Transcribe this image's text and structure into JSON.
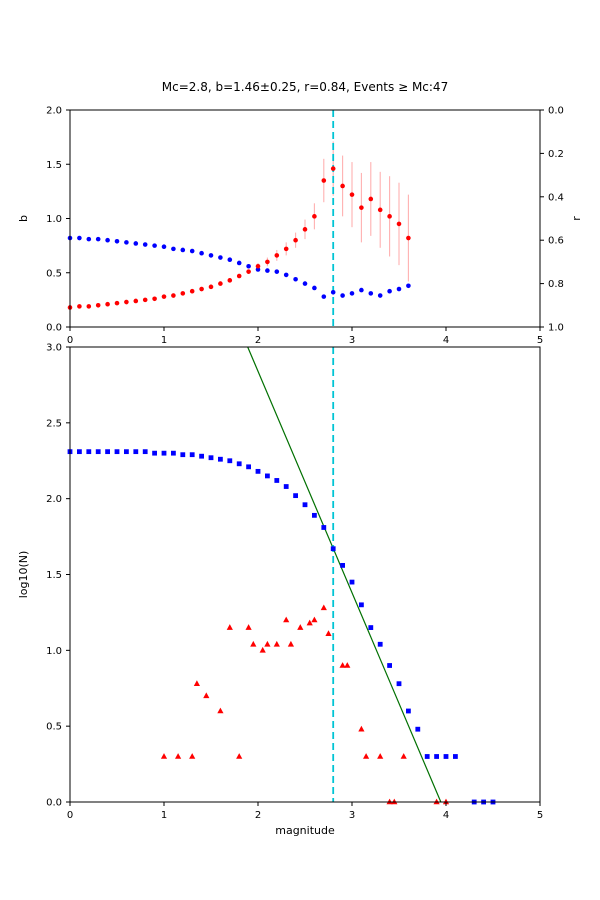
{
  "figure": {
    "title": "Mc=2.8, b=1.46±0.25, r=0.84, Events ≥ Mc:47",
    "background": "#ffffff"
  },
  "colors": {
    "blue": "#0000ff",
    "red": "#ff0000",
    "pink": "#ffb0b0",
    "green": "#007000",
    "cyan": "#00c4d4",
    "axis": "#000000"
  },
  "chart_data": [
    {
      "type": "scatter",
      "name": "b-and-r-vs-cutoff-magnitude",
      "xlim": [
        0,
        5
      ],
      "xticks": [
        "0",
        "1",
        "2",
        "3",
        "4",
        "5"
      ],
      "left_axis": {
        "label": "b",
        "lim": [
          0,
          2
        ],
        "ticks": [
          "0.0",
          "0.5",
          "1.0",
          "1.5",
          "2.0"
        ]
      },
      "right_axis": {
        "label": "r",
        "lim": [
          0,
          1
        ],
        "ticks": [
          "0.0",
          "0.2",
          "0.4",
          "0.6",
          "0.8",
          "1.0"
        ]
      },
      "vline": {
        "x": 2.8,
        "style": "dashed",
        "color_key": "cyan"
      },
      "series": [
        {
          "name": "b-value",
          "axis": "left",
          "marker": "circle",
          "color_key": "red",
          "err_color_key": "pink",
          "x": [
            0,
            0.1,
            0.2,
            0.3,
            0.4,
            0.5,
            0.6,
            0.7,
            0.8,
            0.9,
            1,
            1.1,
            1.2,
            1.3,
            1.4,
            1.5,
            1.6,
            1.7,
            1.8,
            1.9,
            2,
            2.1,
            2.2,
            2.3,
            2.4,
            2.5,
            2.6,
            2.7,
            2.8,
            2.9,
            3,
            3.1,
            3.2,
            3.3,
            3.4,
            3.5,
            3.6
          ],
          "y": [
            0.18,
            0.19,
            0.19,
            0.2,
            0.21,
            0.22,
            0.23,
            0.24,
            0.25,
            0.26,
            0.28,
            0.29,
            0.31,
            0.33,
            0.35,
            0.37,
            0.4,
            0.43,
            0.47,
            0.51,
            0.56,
            0.6,
            0.66,
            0.72,
            0.8,
            0.9,
            1.02,
            1.35,
            1.46,
            1.3,
            1.22,
            1.1,
            1.18,
            1.08,
            1.02,
            0.95,
            0.82
          ],
          "yerr": [
            0.02,
            0.02,
            0.02,
            0.02,
            0.02,
            0.02,
            0.02,
            0.02,
            0.02,
            0.02,
            0.02,
            0.02,
            0.02,
            0.02,
            0.02,
            0.02,
            0.02,
            0.02,
            0.02,
            0.02,
            0.03,
            0.04,
            0.05,
            0.06,
            0.07,
            0.09,
            0.12,
            0.2,
            0.25,
            0.28,
            0.3,
            0.32,
            0.34,
            0.35,
            0.37,
            0.38,
            0.4
          ]
        },
        {
          "name": "r-value",
          "axis": "right",
          "marker": "circle",
          "color_key": "blue",
          "x": [
            0,
            0.1,
            0.2,
            0.3,
            0.4,
            0.5,
            0.6,
            0.7,
            0.8,
            0.9,
            1,
            1.1,
            1.2,
            1.3,
            1.4,
            1.5,
            1.6,
            1.7,
            1.8,
            1.9,
            2,
            2.1,
            2.2,
            2.3,
            2.4,
            2.5,
            2.6,
            2.7,
            2.8,
            2.9,
            3,
            3.1,
            3.2,
            3.3,
            3.4,
            3.5,
            3.6
          ],
          "y": [
            0.59,
            0.59,
            0.595,
            0.595,
            0.6,
            0.605,
            0.61,
            0.615,
            0.62,
            0.625,
            0.63,
            0.64,
            0.645,
            0.65,
            0.66,
            0.67,
            0.68,
            0.69,
            0.705,
            0.72,
            0.735,
            0.74,
            0.745,
            0.76,
            0.78,
            0.8,
            0.82,
            0.86,
            0.84,
            0.855,
            0.845,
            0.83,
            0.845,
            0.855,
            0.835,
            0.825,
            0.81
          ]
        }
      ]
    },
    {
      "type": "scatter",
      "name": "frequency-magnitude-distribution",
      "xlabel": "magnitude",
      "ylabel": "log10(N)",
      "xlim": [
        0,
        5
      ],
      "ylim": [
        0,
        3
      ],
      "xticks": [
        "0",
        "1",
        "2",
        "3",
        "4",
        "5"
      ],
      "yticks": [
        "0.0",
        "0.5",
        "1.0",
        "1.5",
        "2.0",
        "2.5",
        "3.0"
      ],
      "vline": {
        "x": 2.8,
        "style": "dashed",
        "color_key": "cyan"
      },
      "fit_line": {
        "slope": -1.46,
        "intercept": 5.76,
        "color_key": "green"
      },
      "series": [
        {
          "name": "cumulative-count",
          "marker": "square",
          "color_key": "blue",
          "x": [
            0,
            0.1,
            0.2,
            0.3,
            0.4,
            0.5,
            0.6,
            0.7,
            0.8,
            0.9,
            1,
            1.1,
            1.2,
            1.3,
            1.4,
            1.5,
            1.6,
            1.7,
            1.8,
            1.9,
            2,
            2.1,
            2.2,
            2.3,
            2.4,
            2.5,
            2.6,
            2.7,
            2.8,
            2.9,
            3,
            3.1,
            3.2,
            3.3,
            3.4,
            3.5,
            3.6,
            3.7,
            3.8,
            3.9,
            4,
            4.1,
            4.3,
            4.4,
            4.5
          ],
          "y": [
            2.31,
            2.31,
            2.31,
            2.31,
            2.31,
            2.31,
            2.31,
            2.31,
            2.31,
            2.3,
            2.3,
            2.3,
            2.29,
            2.29,
            2.28,
            2.27,
            2.26,
            2.25,
            2.23,
            2.21,
            2.18,
            2.15,
            2.12,
            2.08,
            2.02,
            1.96,
            1.89,
            1.81,
            1.67,
            1.56,
            1.45,
            1.3,
            1.15,
            1.04,
            0.9,
            0.78,
            0.6,
            0.48,
            0.3,
            0.3,
            0.3,
            0.3,
            0,
            0,
            0
          ]
        },
        {
          "name": "bin-count",
          "marker": "triangle",
          "color_key": "red",
          "x": [
            1,
            1.15,
            1.3,
            1.35,
            1.45,
            1.6,
            1.7,
            1.8,
            1.9,
            1.95,
            2.05,
            2.1,
            2.2,
            2.3,
            2.35,
            2.45,
            2.55,
            2.6,
            2.7,
            2.75,
            2.9,
            2.95,
            3.1,
            3.15,
            3.3,
            3.4,
            3.45,
            3.55,
            3.9,
            4
          ],
          "y": [
            0.3,
            0.3,
            0.3,
            0.78,
            0.7,
            0.6,
            1.15,
            0.3,
            1.15,
            1.04,
            1,
            1.04,
            1.04,
            1.2,
            1.04,
            1.15,
            1.18,
            1.2,
            1.28,
            1.11,
            0.9,
            0.9,
            0.48,
            0.3,
            0.3,
            0,
            0,
            0.3,
            0,
            0
          ]
        }
      ]
    }
  ]
}
